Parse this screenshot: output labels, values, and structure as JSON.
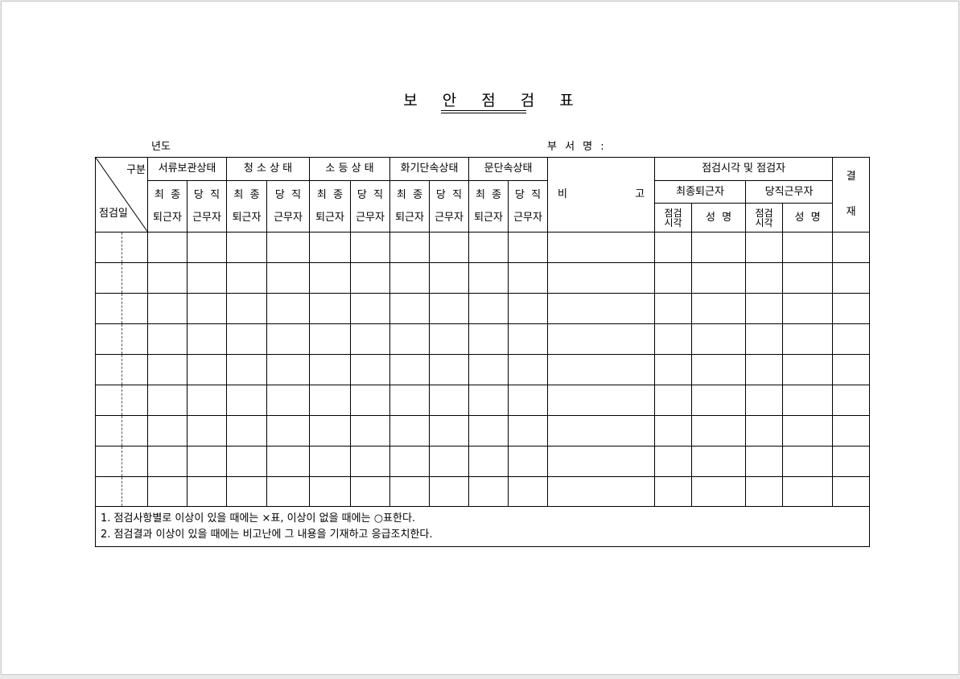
{
  "title": [
    "보",
    "안",
    "점",
    "검",
    "표"
  ],
  "year_label": "년도",
  "dept_label": "부 서 명 :",
  "header": {
    "category": "구분",
    "date": "점검일",
    "groups": [
      "서류보관상태",
      "청 소 상 태",
      "소 등 상 태",
      "화기단속상태",
      "문단속상태"
    ],
    "sub_a": [
      "최  종",
      "퇴근자"
    ],
    "sub_b": [
      "당  직",
      "근무자"
    ],
    "remarks_a": "비",
    "remarks_b": "고",
    "inspect_group": "점검시각 및 점검자",
    "last_leaver": "최종퇴근자",
    "duty_worker": "당직근무자",
    "inspect_time": [
      "점검",
      "시각"
    ],
    "name": "성  명",
    "approval": [
      "결",
      "재"
    ]
  },
  "row_count": 9,
  "notes": [
    "1. 점검사항별로 이상이 있을 때에는 ×표, 이상이 없을 때에는 ○표한다.",
    "2. 점검결과 이상이 있을 때에는 비고난에 그 내용을 기재하고 응급조치한다."
  ]
}
